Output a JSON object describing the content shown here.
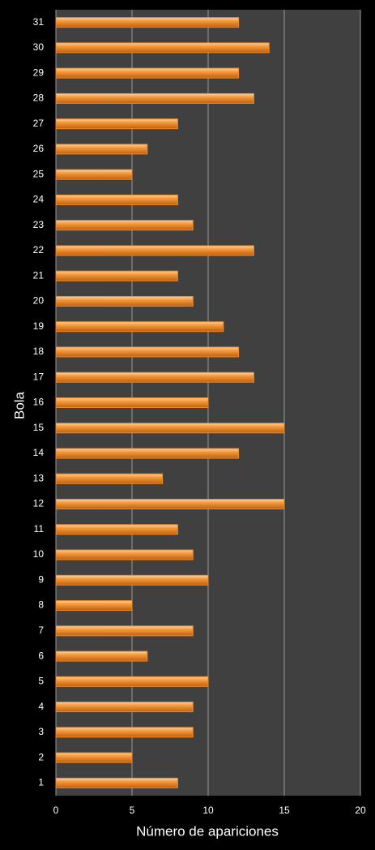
{
  "chart_data": {
    "type": "barh",
    "xlabel": "Número de apariciones",
    "ylabel": "Bola",
    "categories": [
      "1",
      "2",
      "3",
      "4",
      "5",
      "6",
      "7",
      "8",
      "9",
      "10",
      "11",
      "12",
      "13",
      "14",
      "15",
      "16",
      "17",
      "18",
      "19",
      "20",
      "21",
      "22",
      "23",
      "24",
      "25",
      "26",
      "27",
      "28",
      "29",
      "30",
      "31"
    ],
    "values": [
      8,
      5,
      9,
      9,
      10,
      6,
      9,
      5,
      10,
      9,
      8,
      15,
      7,
      12,
      15,
      10,
      13,
      12,
      11,
      9,
      8,
      13,
      9,
      8,
      5,
      6,
      8,
      13,
      12,
      14,
      12
    ],
    "color": "#f08a24",
    "xlim": [
      0,
      20
    ],
    "xticks": [
      0,
      5,
      10,
      15,
      20
    ],
    "grid": true
  }
}
